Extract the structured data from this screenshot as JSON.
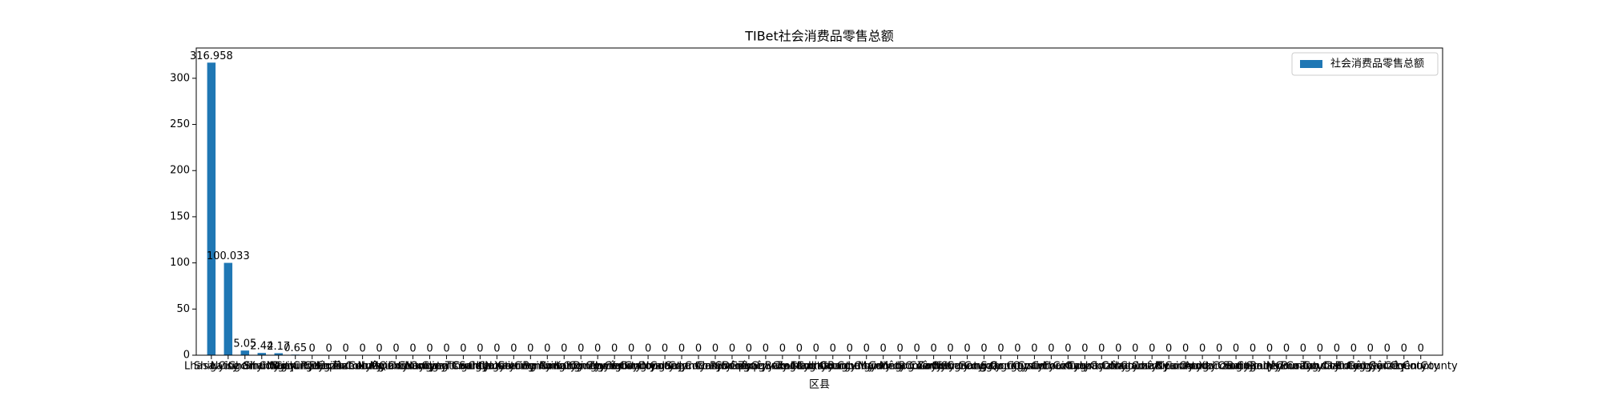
{
  "chart_data": {
    "type": "bar",
    "title": "TIBet社会消费品零售总额",
    "x_label": "区县",
    "categories": [
      "Lhasa City",
      "Shigatse City",
      "Nyingchi City",
      "Chamdo City",
      "Shannan City",
      "Nagqu City",
      "Ngari Prefecture",
      "Doilungdêqên County",
      "Dagzê County",
      "Lhünzhub County",
      "Damxung County",
      "Nyêmo County",
      "Qüxü County",
      "Maizhokunggar County",
      "Namling County",
      "Gyantse County",
      "Tingri County",
      "Sa'gya County",
      "Lhatse County",
      "Ngamring County",
      "Xaitongmoin County",
      "Bainang County",
      "Rinbung County",
      "Kangmar County",
      "Dinggyê County",
      "Zhongba County",
      "Yadong County",
      "Gyirong County",
      "Nyalam County",
      "Saga County",
      "Jomda County",
      "Gonjo County",
      "Riwoqê County",
      "Dêngqên County",
      "Zhag'yab County",
      "Baxoi County",
      "Zogang County",
      "Markam County",
      "Lhorong County",
      "Banbar County",
      "Gongbo'gyamda County",
      "Mainling County",
      "Mêdog County",
      "Bomê County",
      "Zayü County",
      "Nang County",
      "Chanang County",
      "Gonggar County",
      "Sangri County",
      "Qonggyai County",
      "Qusum County",
      "Comai County",
      "Lhozhag County",
      "Gyaca County",
      "Lhünzê County",
      "Cona County",
      "Nagarzê County",
      "Lhari County",
      "Biru County",
      "Nyainrong County",
      "Amdo County",
      "Xainza County",
      "Sog County",
      "Baingoin County",
      "Baqên County",
      "Nyima County",
      "Burang County",
      "Zanda County",
      "Gar County",
      "Rutog County",
      "Gê'gyai County",
      "Gêrzê County",
      "Coqên County"
    ],
    "series": [
      {
        "name": "社会消费品零售总额",
        "color": "#1f77b4",
        "values": [
          316.958,
          100.033,
          5.05,
          2.44,
          2.17,
          0.65,
          0,
          0,
          0,
          0,
          0,
          0,
          0,
          0,
          0,
          0,
          0,
          0,
          0,
          0,
          0,
          0,
          0,
          0,
          0,
          0,
          0,
          0,
          0,
          0,
          0,
          0,
          0,
          0,
          0,
          0,
          0,
          0,
          0,
          0,
          0,
          0,
          0,
          0,
          0,
          0,
          0,
          0,
          0,
          0,
          0,
          0,
          0,
          0,
          0,
          0,
          0,
          0,
          0,
          0,
          0,
          0,
          0,
          0,
          0,
          0,
          0,
          0,
          0,
          0,
          0,
          0,
          0
        ]
      }
    ],
    "ylim": [
      0,
      332.806
    ],
    "yticks": [
      0,
      50,
      100,
      150,
      200,
      250,
      300
    ],
    "legend": "upper right"
  }
}
